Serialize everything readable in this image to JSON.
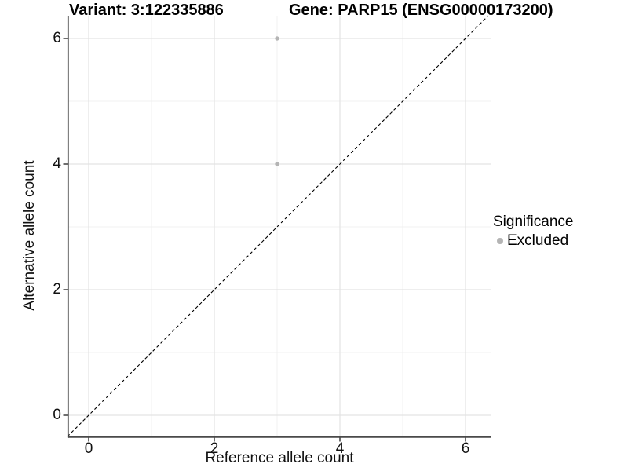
{
  "titles": {
    "variant": "Variant: 3:122335886",
    "gene": "Gene: PARP15 (ENSG00000173200)"
  },
  "chart_data": {
    "type": "scatter",
    "title": "Variant: 3:122335886  |  Gene: PARP15 (ENSG00000173200)",
    "xlabel": "Reference allele count",
    "ylabel": "Alternative allele count",
    "xlim": [
      -0.34,
      6.42
    ],
    "ylim": [
      -0.34,
      6.42
    ],
    "x_ticks": [
      0,
      2,
      4,
      6
    ],
    "y_ticks": [
      0,
      2,
      4,
      6
    ],
    "x_minor_ticks": [
      1,
      3,
      5
    ],
    "y_minor_ticks": [
      1,
      3,
      5
    ],
    "grid": "major+minor",
    "legend_position": "right",
    "series": [
      {
        "name": "Excluded",
        "color": "#b4b4b4",
        "points": [
          {
            "x": 3,
            "y": 6
          },
          {
            "x": 3,
            "y": 4
          }
        ]
      }
    ],
    "identity_line": {
      "style": "dashed",
      "color": "#000000",
      "from": [
        -0.34,
        -0.34
      ],
      "to": [
        6.36,
        6.36
      ]
    },
    "legend": {
      "title": "Significance",
      "items": [
        {
          "label": "Excluded",
          "color": "#b4b4b4"
        }
      ]
    }
  },
  "colors": {
    "background": "#ffffff",
    "grid_major": "#e3e3e3",
    "grid_minor": "#f0f0f0",
    "axis_line": "#4a4a4a",
    "point": "#b4b4b4",
    "dashed_line": "#000000",
    "text": "#000000"
  }
}
